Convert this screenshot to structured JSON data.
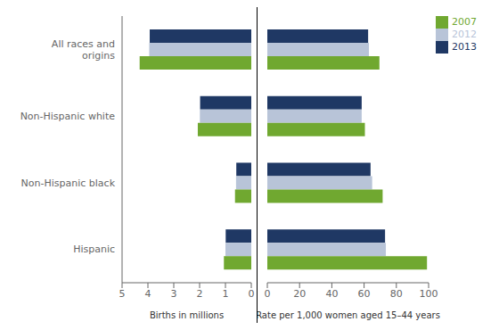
{
  "chart_data": [
    {
      "type": "bar",
      "orientation": "horizontal",
      "categories": [
        "Hispanic",
        "Non-Hispanic black",
        "Non-Hispanic white",
        "All races and\norigins"
      ],
      "series": [
        {
          "name": "2007",
          "color": "#70a830",
          "values": [
            1.06,
            0.63,
            2.07,
            4.32
          ]
        },
        {
          "name": "2012",
          "color": "#b8c4d8",
          "values": [
            1.0,
            0.59,
            1.99,
            3.95
          ]
        },
        {
          "name": "2013",
          "color": "#1f3864",
          "values": [
            0.99,
            0.58,
            1.98,
            3.93
          ]
        }
      ],
      "xlabel": "Births in millions",
      "xlim": [
        5,
        0
      ],
      "xticks": [
        5,
        4,
        3,
        2,
        1,
        0
      ],
      "grid": false
    },
    {
      "type": "bar",
      "orientation": "horizontal",
      "categories": [
        "Hispanic",
        "Non-Hispanic black",
        "Non-Hispanic white",
        "All races and\norigins"
      ],
      "series": [
        {
          "name": "2007",
          "color": "#70a830",
          "values": [
            99.0,
            71.5,
            60.5,
            69.5
          ]
        },
        {
          "name": "2012",
          "color": "#b8c4d8",
          "values": [
            73.5,
            65.0,
            58.5,
            63.0
          ]
        },
        {
          "name": "2013",
          "color": "#1f3864",
          "values": [
            73.0,
            64.0,
            58.5,
            62.5
          ]
        }
      ],
      "xlabel": "Rate per 1,000 women aged 15–44 years",
      "xlim": [
        0,
        100
      ],
      "xticks": [
        0,
        20,
        40,
        60,
        80,
        100
      ],
      "tick_labels": "x",
      "legend": "upper right",
      "grid": false
    }
  ]
}
